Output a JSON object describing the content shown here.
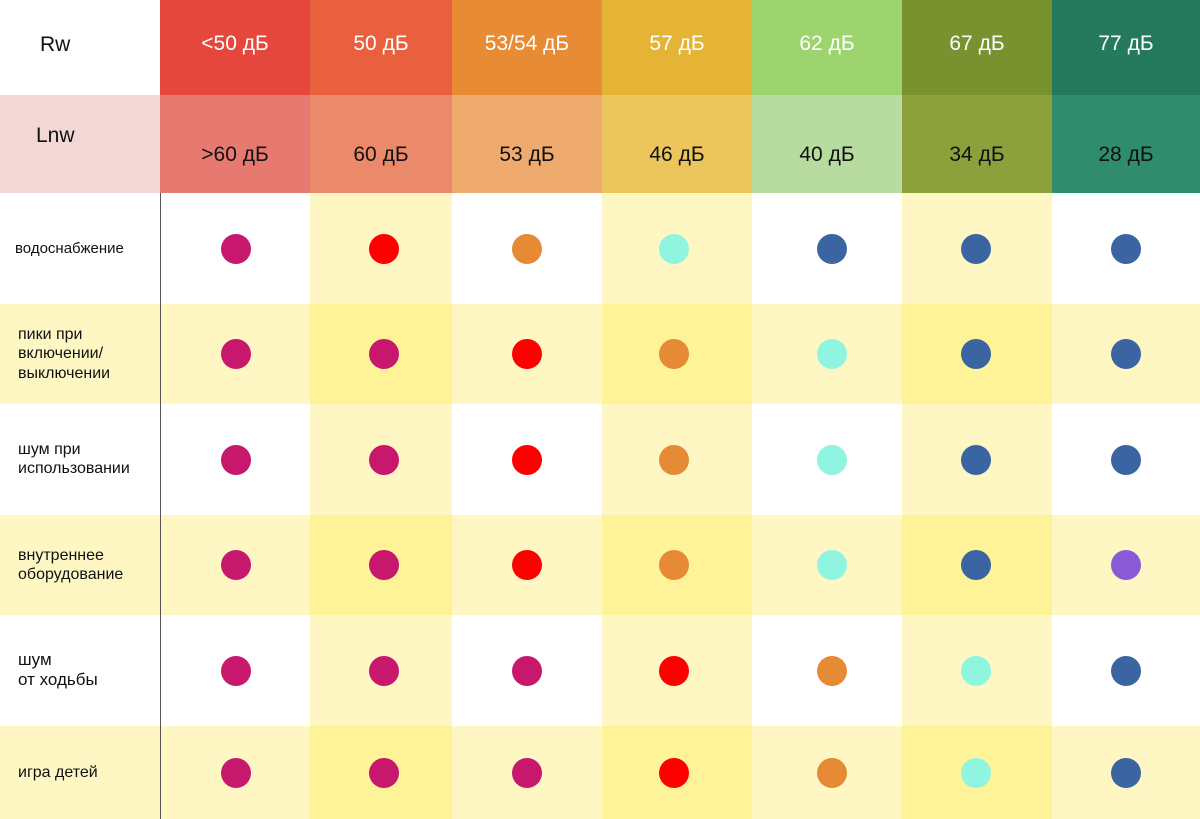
{
  "header": {
    "rw_label": "Rw",
    "lnw_label": "Lnw"
  },
  "columns": [
    {
      "rw": "<50 дБ",
      "lnw": ">60 дБ",
      "rw_color": "#e5473d",
      "lnw_color": "#e77a70"
    },
    {
      "rw": "50 дБ",
      "lnw": "60 дБ",
      "rw_color": "#e9603e",
      "lnw_color": "#eb8a6a"
    },
    {
      "rw": "53/54 дБ",
      "lnw": "53 дБ",
      "rw_color": "#e88b35",
      "lnw_color": "#efaa6e"
    },
    {
      "rw": "57 дБ",
      "lnw": "46 дБ",
      "rw_color": "#e5b335",
      "lnw_color": "#ecc55c"
    },
    {
      "rw": "62 дБ",
      "lnw": "40 дБ",
      "rw_color": "#9dd46e",
      "lnw_color": "#b8dca0"
    },
    {
      "rw": "67 дБ",
      "lnw": "34 дБ",
      "rw_color": "#7a9130",
      "lnw_color": "#8ca13c"
    },
    {
      "rw": "77 дБ",
      "lnw": "28 дБ",
      "rw_color": "#257a5e",
      "lnw_color": "#2f8c6c"
    }
  ],
  "rows": [
    {
      "label": [
        "водоснабжение"
      ],
      "dots": [
        "magenta",
        "red",
        "orange",
        "cyan",
        "blue",
        "blue",
        "blue"
      ]
    },
    {
      "label": [
        "пики при",
        "включении/",
        "выключении"
      ],
      "dots": [
        "magenta",
        "magenta",
        "red",
        "orange",
        "cyan",
        "blue",
        "blue"
      ]
    },
    {
      "label": [
        "шум при",
        "использовании"
      ],
      "dots": [
        "magenta",
        "magenta",
        "red",
        "orange",
        "cyan",
        "blue",
        "blue"
      ]
    },
    {
      "label": [
        "внутреннее",
        "оборудование"
      ],
      "dots": [
        "magenta",
        "magenta",
        "red",
        "orange",
        "cyan",
        "blue",
        "purple"
      ]
    },
    {
      "label": [
        "шум",
        "от ходьбы"
      ],
      "dots": [
        "magenta",
        "magenta",
        "magenta",
        "red",
        "orange",
        "cyan",
        "blue"
      ]
    },
    {
      "label": [
        "игра детей"
      ],
      "dots": [
        "magenta",
        "magenta",
        "magenta",
        "red",
        "orange",
        "cyan",
        "blue"
      ]
    }
  ],
  "dot_colors": {
    "magenta": "#c8186e",
    "red": "#ff0000",
    "orange": "#e68a35",
    "cyan": "#8ff4e0",
    "blue": "#3b64a3",
    "purple": "#8a5ad6"
  },
  "colors": {
    "lnw_label_bg": "#f2d8d4",
    "row_bg_light": "#fef7c4",
    "row_bg_mid": "#fff399",
    "white": "#ffffff"
  }
}
